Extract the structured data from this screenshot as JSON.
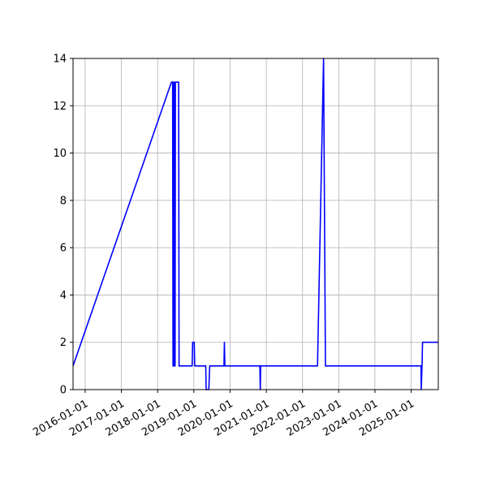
{
  "chart_data": {
    "type": "line",
    "title": "",
    "xlabel": "",
    "ylabel": "",
    "x_axis": "date",
    "xlim": [
      "2015-09-01",
      "2025-10-01"
    ],
    "ylim": [
      0,
      14
    ],
    "grid": true,
    "legend": "none",
    "line_color": "#0000ff",
    "x_ticks": [
      "2016-01-01",
      "2017-01-01",
      "2018-01-01",
      "2019-01-01",
      "2020-01-01",
      "2021-01-01",
      "2022-01-01",
      "2023-01-01",
      "2024-01-01",
      "2025-01-01"
    ],
    "y_ticks": [
      0,
      2,
      4,
      6,
      8,
      10,
      12,
      14
    ],
    "series": [
      {
        "x": [
          "2015-09-01",
          "2018-05-20",
          "2018-06-01",
          "2018-06-05",
          "2018-06-08",
          "2018-06-12",
          "2018-06-15",
          "2018-06-19",
          "2018-06-22",
          "2018-06-26",
          "2018-06-29",
          "2018-07-05",
          "2018-07-15",
          "2018-08-01",
          "2018-08-05",
          "2018-12-15",
          "2018-12-20",
          "2019-01-05",
          "2019-01-10",
          "2019-05-01",
          "2019-05-05",
          "2019-06-01",
          "2019-06-10",
          "2019-11-01",
          "2019-11-05",
          "2019-11-10",
          "2020-10-28",
          "2020-11-01",
          "2020-11-05",
          "2022-06-01",
          "2022-08-01",
          "2022-08-20",
          "2025-04-10",
          "2025-04-12",
          "2025-04-20",
          "2025-04-25",
          "2025-10-01"
        ],
        "y": [
          1,
          13,
          13,
          1,
          13,
          1,
          13,
          1,
          13,
          1,
          13,
          13,
          13,
          13,
          1,
          1,
          2,
          2,
          1,
          1,
          0,
          0,
          1,
          1,
          2,
          1,
          1,
          0,
          1,
          1,
          14,
          1,
          1,
          0,
          1,
          2,
          2
        ]
      }
    ]
  }
}
